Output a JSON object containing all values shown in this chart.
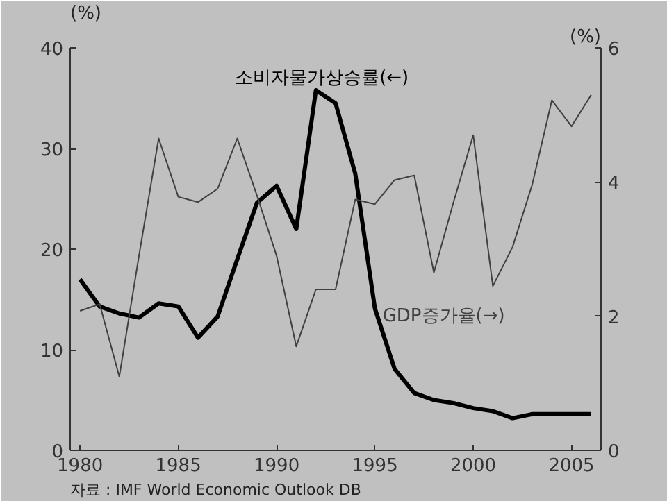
{
  "chart_data": {
    "type": "line",
    "x": [
      1980,
      1981,
      1982,
      1983,
      1984,
      1985,
      1986,
      1987,
      1988,
      1989,
      1990,
      1991,
      1992,
      1993,
      1994,
      1995,
      1996,
      1997,
      1998,
      1999,
      2000,
      2001,
      2002,
      2003,
      2004,
      2005,
      2006
    ],
    "series": [
      {
        "name": "소비자물가상승률(←)",
        "color": "#000000",
        "values": [
          17,
          14.3,
          13.6,
          13.2,
          14.6,
          14.3,
          11.2,
          13.3,
          19,
          24.6,
          26.3,
          22,
          35.8,
          34.5,
          27.5,
          14.1,
          8.1,
          5.7,
          5.0,
          4.7,
          4.2,
          3.9,
          3.2,
          3.6,
          3.6,
          3.6,
          3.6
        ]
      },
      {
        "name": "GDP증가율(→)",
        "color": "#404040",
        "axis": "y2",
        "values": [
          2.08,
          2.18,
          1.1,
          2.9,
          4.65,
          3.78,
          3.7,
          3.9,
          4.65,
          3.8,
          2.9,
          1.55,
          2.4,
          2.4,
          3.74,
          3.67,
          4.03,
          4.1,
          2.65,
          3.7,
          4.7,
          2.45,
          3.03,
          3.96,
          5.22,
          4.83,
          5.3
        ]
      }
    ],
    "xlim": [
      1979.5,
      2006.5
    ],
    "xticks": [
      1980,
      1985,
      1990,
      1995,
      2000,
      2005
    ],
    "ylim": [
      0,
      40
    ],
    "yticks": [
      0,
      10,
      20,
      30,
      40
    ],
    "y2lim": [
      0,
      6
    ],
    "y2ticks": [
      0,
      2,
      4,
      6
    ],
    "ylabel": "(%)",
    "y2label": "(%)",
    "annotations": [
      "자료 : IMF World Economic Outlook DB"
    ],
    "grid": false,
    "legend": false,
    "marker": "none",
    "line_style": "solid"
  }
}
